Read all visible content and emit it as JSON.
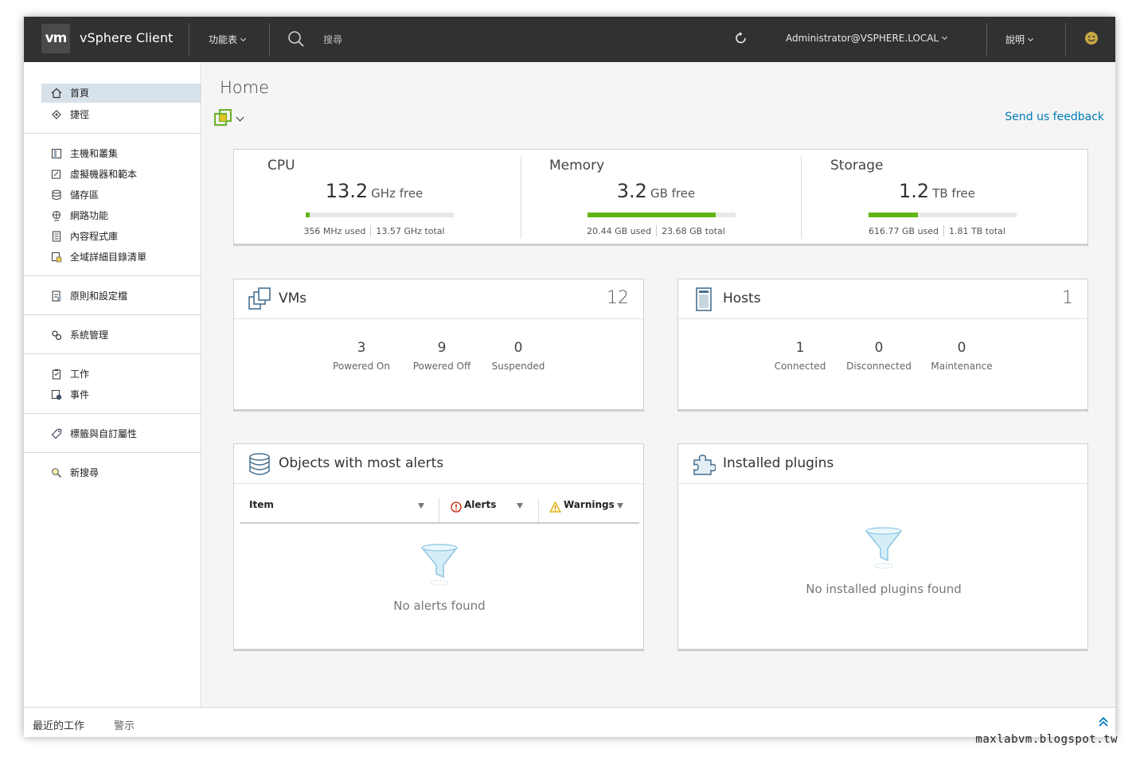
{
  "header": {
    "logo": "vm",
    "app_title": "vSphere Client",
    "menu_label": "功能表",
    "search_placeholder": "搜尋",
    "user_label": "Administrator@VSPHERE.LOCAL",
    "help_label": "說明"
  },
  "sidebar": {
    "items": [
      {
        "label": "首頁",
        "icon": "home-icon"
      },
      {
        "label": "捷徑",
        "icon": "shortcuts-icon"
      },
      {
        "label": "主機和叢集",
        "icon": "hosts-clusters-icon"
      },
      {
        "label": "虛擬機器和範本",
        "icon": "vm-templates-icon"
      },
      {
        "label": "儲存區",
        "icon": "storage-icon"
      },
      {
        "label": "網路功能",
        "icon": "network-icon"
      },
      {
        "label": "內容程式庫",
        "icon": "content-library-icon"
      },
      {
        "label": "全域詳細目錄清單",
        "icon": "global-inventory-icon"
      },
      {
        "label": "原則和設定檔",
        "icon": "policies-icon"
      },
      {
        "label": "系統管理",
        "icon": "administration-icon"
      },
      {
        "label": "工作",
        "icon": "tasks-icon"
      },
      {
        "label": "事件",
        "icon": "events-icon"
      },
      {
        "label": "標籤與自訂屬性",
        "icon": "tag-icon"
      },
      {
        "label": "新搜尋",
        "icon": "new-search-icon"
      }
    ]
  },
  "main": {
    "title": "Home",
    "feedback_link": "Send us feedback",
    "resources": [
      {
        "name": "CPU",
        "free": "13.2",
        "unit": "GHz free",
        "used": "356 MHz used",
        "total": "13.57 GHz total",
        "usage_fraction": 0.026
      },
      {
        "name": "Memory",
        "free": "3.2",
        "unit": "GB free",
        "used": "20.44 GB used",
        "total": "23.68 GB total",
        "usage_fraction": 0.863
      },
      {
        "name": "Storage",
        "free": "1.2",
        "unit": "TB free",
        "used": "616.77 GB used",
        "total": "1.81 TB total",
        "usage_fraction": 0.333
      }
    ],
    "vms": {
      "title": "VMs",
      "count": "12",
      "stats": [
        {
          "value": "3",
          "label": "Powered On"
        },
        {
          "value": "9",
          "label": "Powered Off"
        },
        {
          "value": "0",
          "label": "Suspended"
        }
      ]
    },
    "hosts": {
      "title": "Hosts",
      "count": "1",
      "stats": [
        {
          "value": "1",
          "label": "Connected"
        },
        {
          "value": "0",
          "label": "Disconnected"
        },
        {
          "value": "0",
          "label": "Maintenance"
        }
      ]
    },
    "alerts": {
      "title": "Objects with most alerts",
      "columns": [
        "Item",
        "Alerts",
        "Warnings"
      ],
      "empty": "No alerts found"
    },
    "plugins": {
      "title": "Installed plugins",
      "empty": "No installed plugins found"
    }
  },
  "bottombar": {
    "recent_tasks": "最近的工作",
    "alarms": "警示"
  },
  "watermark": "maxlabvm.blogspot.tw",
  "colors": {
    "header_bg": "#313131",
    "accent": "#0079b8",
    "bar_fill": "#60b515",
    "active_nav": "#d6e1ea"
  }
}
